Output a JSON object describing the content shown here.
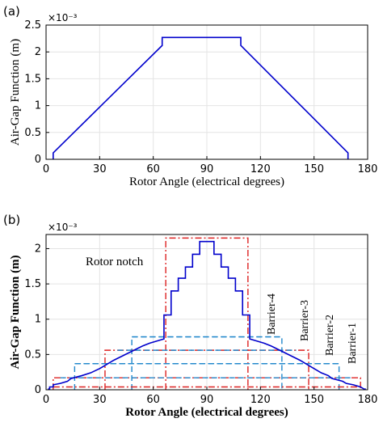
{
  "panel_a_label": "(a)",
  "panel_b_label": "(b)",
  "chart_data": [
    {
      "type": "line",
      "xlabel": "Rotor Angle (electrical degrees)",
      "ylabel": "Air-Gap Function (m)",
      "y_multiplier": "×10⁻³",
      "xlim": [
        0,
        180
      ],
      "ylim": [
        0,
        2.5
      ],
      "xticks": [
        "0",
        "30",
        "60",
        "90",
        "120",
        "150",
        "180"
      ],
      "yticks": [
        "0",
        "0.5",
        "1",
        "1.5",
        "2",
        "2.5"
      ],
      "grid": true,
      "series": [
        {
          "color": "#0000cc",
          "x": [
            4,
            4,
            65,
            65,
            109,
            109,
            169,
            169
          ],
          "y": [
            0,
            0.12,
            2.12,
            2.27,
            2.27,
            2.12,
            0.12,
            0
          ]
        }
      ]
    },
    {
      "type": "line",
      "xlabel": "Rotor Angle (electrical degrees)",
      "ylabel": "Air-Gap Function (m)",
      "y_multiplier": "×10⁻³",
      "xlim": [
        0,
        180
      ],
      "ylim": [
        0,
        2.2
      ],
      "xticks": [
        "0",
        "30",
        "60",
        "90",
        "120",
        "150",
        "180"
      ],
      "yticks": [
        "0",
        "0.5",
        "1",
        "1.5",
        "2"
      ],
      "grid": true,
      "annotations": {
        "rotor_notch": "Rotor notch",
        "barrier_4": "Barrier-4",
        "barrier_3": "Barrier-3",
        "barrier_2": "Barrier-2",
        "barrier_1": "Barrier-1"
      },
      "series": [
        {
          "color": "#0000cc",
          "x": [
            1,
            2,
            2,
            4,
            4,
            8,
            12,
            14,
            20,
            25,
            30,
            34,
            38,
            42,
            46,
            50,
            54,
            58,
            62,
            66,
            66,
            70,
            70,
            74,
            74,
            78,
            78,
            82,
            82,
            86,
            86,
            94,
            94,
            98,
            98,
            102,
            102,
            106,
            106,
            110,
            110,
            114,
            114,
            118,
            122,
            126,
            130,
            134,
            138,
            142,
            146,
            150,
            154,
            158,
            160,
            166,
            168,
            172,
            176,
            176,
            178,
            178,
            179
          ],
          "y": [
            0.01,
            0.01,
            0.04,
            0.04,
            0.07,
            0.09,
            0.12,
            0.16,
            0.2,
            0.24,
            0.3,
            0.36,
            0.42,
            0.47,
            0.52,
            0.57,
            0.62,
            0.66,
            0.69,
            0.72,
            1.06,
            1.06,
            1.4,
            1.4,
            1.58,
            1.58,
            1.74,
            1.74,
            1.92,
            1.92,
            2.1,
            2.1,
            1.92,
            1.92,
            1.74,
            1.74,
            1.58,
            1.58,
            1.4,
            1.4,
            1.06,
            1.06,
            0.72,
            0.69,
            0.66,
            0.62,
            0.57,
            0.52,
            0.47,
            0.42,
            0.36,
            0.3,
            0.24,
            0.2,
            0.16,
            0.12,
            0.09,
            0.07,
            0.04,
            0.04,
            0.01,
            0.01,
            0.01
          ]
        }
      ],
      "regions": [
        {
          "color": "#dd2222",
          "style": "dashdot",
          "x": [
            67,
            113
          ],
          "y": [
            0,
            2.15
          ]
        },
        {
          "color": "#2288cc",
          "style": "dash",
          "x": [
            48,
            132
          ],
          "y": [
            0,
            0.75
          ]
        },
        {
          "color": "#dd2222",
          "style": "dashdot",
          "x": [
            33,
            147
          ],
          "y": [
            0,
            0.56
          ]
        },
        {
          "color": "#2288cc",
          "style": "dash",
          "x": [
            16,
            164
          ],
          "y": [
            0,
            0.37
          ]
        },
        {
          "color": "#dd2222",
          "style": "dashdot",
          "x": [
            4,
            176
          ],
          "y": [
            0,
            0.17
          ]
        }
      ],
      "horizontal_lines": [
        {
          "color": "#2288cc",
          "style": "dash",
          "x": [
            48,
            132
          ],
          "y": 0.75
        },
        {
          "color": "#2288cc",
          "style": "dash",
          "x": [
            40,
            140
          ],
          "y": 0.56
        },
        {
          "color": "#2288cc",
          "style": "dash",
          "x": [
            16,
            164
          ],
          "y": 0.37
        },
        {
          "color": "#2288cc",
          "style": "dash",
          "x": [
            8,
            172
          ],
          "y": 0.17
        },
        {
          "color": "#dd2222",
          "style": "dashdot",
          "x": [
            4,
            176
          ],
          "y": 0.04
        }
      ]
    }
  ]
}
